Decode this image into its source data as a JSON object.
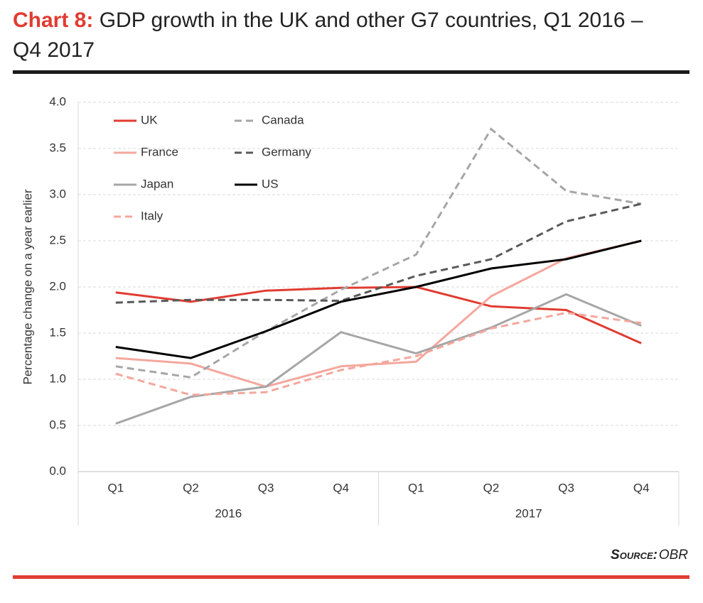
{
  "chart_data": {
    "type": "line",
    "title_prefix": "Chart 8:",
    "title": "GDP growth in the UK and other G7 countries, Q1 2016 – Q4 2017",
    "y_label": "Percentage change on a year earlier",
    "categories": [
      "Q1",
      "Q2",
      "Q3",
      "Q4",
      "Q1",
      "Q2",
      "Q3",
      "Q4"
    ],
    "x_groups": [
      "2016",
      "2017"
    ],
    "series": [
      {
        "name": "UK",
        "color": "#e03c31",
        "dashed": false,
        "values": [
          1.94,
          1.84,
          1.96,
          1.99,
          2.0,
          1.79,
          1.75,
          1.39
        ]
      },
      {
        "name": "France",
        "color": "#f4a79d",
        "dashed": false,
        "values": [
          1.23,
          1.17,
          0.92,
          1.14,
          1.19,
          1.9,
          2.31,
          2.5
        ]
      },
      {
        "name": "Japan",
        "color": "#a6a6a6",
        "dashed": false,
        "values": [
          0.52,
          0.81,
          0.92,
          1.51,
          1.28,
          1.56,
          1.92,
          1.58
        ]
      },
      {
        "name": "Italy",
        "color": "#f4a79d",
        "dashed": true,
        "values": [
          1.06,
          0.83,
          0.86,
          1.1,
          1.25,
          1.55,
          1.72,
          1.61
        ]
      },
      {
        "name": "Canada",
        "color": "#a6a6a6",
        "dashed": true,
        "values": [
          1.14,
          1.02,
          1.52,
          1.97,
          2.35,
          3.71,
          3.04,
          2.9
        ]
      },
      {
        "name": "Germany",
        "color": "#595959",
        "dashed": true,
        "values": [
          1.83,
          1.86,
          1.86,
          1.85,
          2.12,
          2.3,
          2.71,
          2.9
        ]
      },
      {
        "name": "US",
        "color": "#000000",
        "dashed": false,
        "values": [
          1.35,
          1.23,
          1.52,
          1.84,
          2.0,
          2.2,
          2.3,
          2.5
        ]
      }
    ],
    "ylim": [
      0,
      4
    ],
    "yticks": [
      {
        "value": 0,
        "label": "0.0"
      },
      {
        "value": 0.5,
        "label": "0.5"
      },
      {
        "value": 1,
        "label": "1.0"
      },
      {
        "value": 1.5,
        "label": "1.5"
      },
      {
        "value": 2,
        "label": "2.0"
      },
      {
        "value": 2.5,
        "label": "2.5"
      },
      {
        "value": 3,
        "label": "3.0"
      },
      {
        "value": 3.5,
        "label": "3.5"
      },
      {
        "value": 4,
        "label": "4.0"
      }
    ],
    "grid": true,
    "source_label": "Source:",
    "source": "OBR"
  }
}
